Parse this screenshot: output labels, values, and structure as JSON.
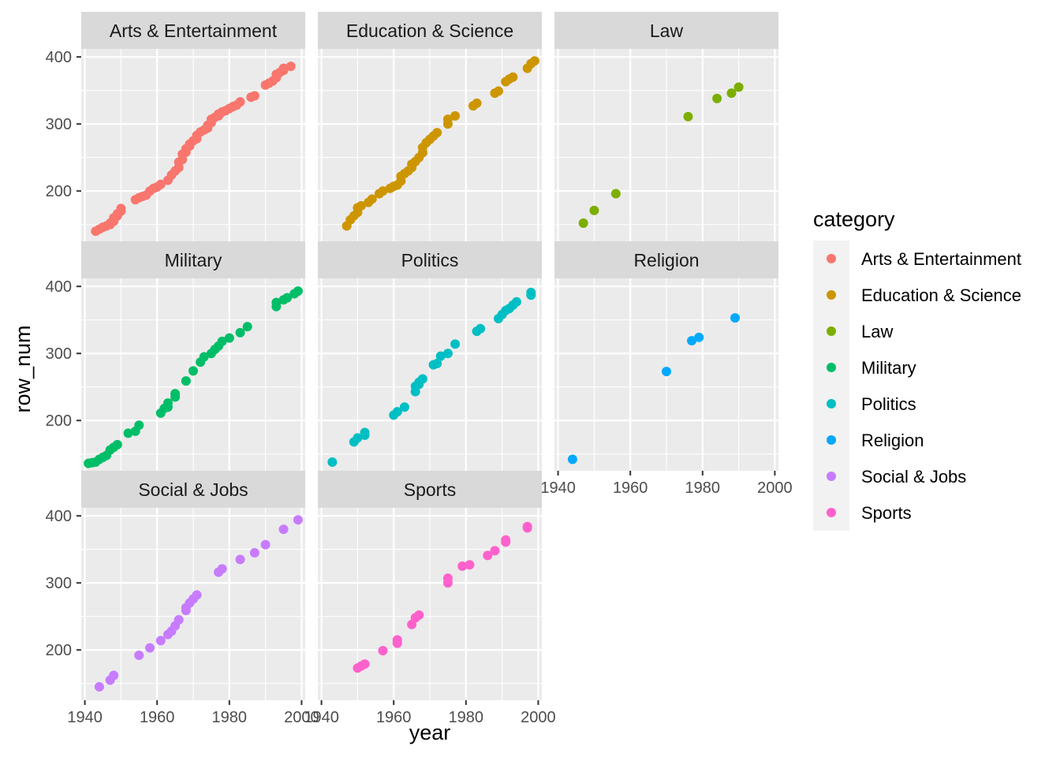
{
  "chart_data": {
    "type": "scatter",
    "facet_by": "category",
    "xlabel": "year",
    "ylabel": "row_num",
    "xlim": [
      1939,
      2001
    ],
    "ylim": [
      125,
      412
    ],
    "x_ticks": [
      1940,
      1960,
      1980,
      2000
    ],
    "x_tick_labels": [
      "1940",
      "1960",
      "1980",
      "2000"
    ],
    "y_ticks": [
      200,
      300,
      400
    ],
    "y_tick_labels": [
      "200",
      "300",
      "400"
    ],
    "grid": true,
    "legend": {
      "title": "category",
      "position": "right",
      "entries": [
        {
          "label": "Arts & Entertainment",
          "color": "#F8766D"
        },
        {
          "label": "Education & Science",
          "color": "#CD9600"
        },
        {
          "label": "Law",
          "color": "#7CAE00"
        },
        {
          "label": "Military",
          "color": "#00BE67"
        },
        {
          "label": "Politics",
          "color": "#00BFC4"
        },
        {
          "label": "Religion",
          "color": "#00A9FF"
        },
        {
          "label": "Social & Jobs",
          "color": "#C77CFF"
        },
        {
          "label": "Sports",
          "color": "#FF61CC"
        }
      ]
    },
    "series": [
      {
        "name": "Arts & Entertainment",
        "x": [
          1943,
          1944,
          1945,
          1946,
          1947,
          1947,
          1948,
          1948,
          1949,
          1949,
          1950,
          1950,
          1954,
          1955,
          1956,
          1957,
          1958,
          1959,
          1960,
          1961,
          1963,
          1964,
          1965,
          1966,
          1966,
          1967,
          1967,
          1968,
          1968,
          1969,
          1969,
          1970,
          1971,
          1971,
          1972,
          1973,
          1974,
          1974,
          1975,
          1975,
          1976,
          1977,
          1977,
          1978,
          1979,
          1980,
          1981,
          1982,
          1983,
          1986,
          1987,
          1990,
          1991,
          1992,
          1993,
          1993,
          1994,
          1995,
          1995,
          1997
        ],
        "y": [
          140,
          143,
          146,
          148,
          150,
          152,
          155,
          160,
          163,
          166,
          170,
          174,
          187,
          190,
          192,
          194,
          200,
          204,
          206,
          210,
          216,
          224,
          230,
          235,
          243,
          247,
          255,
          258,
          263,
          267,
          270,
          275,
          278,
          283,
          288,
          291,
          294,
          298,
          302,
          307,
          310,
          312,
          315,
          318,
          320,
          323,
          326,
          328,
          333,
          340,
          342,
          358,
          361,
          364,
          369,
          374,
          377,
          380,
          383,
          386
        ]
      },
      {
        "name": "Education & Science",
        "x": [
          1947,
          1948,
          1949,
          1950,
          1950,
          1951,
          1953,
          1954,
          1956,
          1957,
          1959,
          1960,
          1961,
          1962,
          1962,
          1963,
          1964,
          1965,
          1965,
          1966,
          1967,
          1968,
          1968,
          1969,
          1970,
          1971,
          1972,
          1975,
          1975,
          1977,
          1982,
          1983,
          1988,
          1989,
          1991,
          1992,
          1993,
          1997,
          1998,
          1999
        ],
        "y": [
          148,
          157,
          163,
          168,
          175,
          178,
          183,
          188,
          196,
          200,
          204,
          207,
          209,
          215,
          222,
          226,
          230,
          235,
          240,
          244,
          250,
          257,
          265,
          272,
          277,
          282,
          287,
          300,
          307,
          312,
          327,
          331,
          346,
          349,
          363,
          367,
          370,
          383,
          390,
          394
        ]
      },
      {
        "name": "Law",
        "x": [
          1947,
          1950,
          1956,
          1976,
          1984,
          1988,
          1990
        ],
        "y": [
          152,
          171,
          196,
          311,
          338,
          346,
          355
        ]
      },
      {
        "name": "Military",
        "x": [
          1941,
          1942,
          1943,
          1944,
          1945,
          1946,
          1947,
          1948,
          1949,
          1952,
          1954,
          1955,
          1961,
          1962,
          1963,
          1963,
          1965,
          1965,
          1968,
          1970,
          1972,
          1973,
          1975,
          1976,
          1977,
          1978,
          1980,
          1983,
          1985,
          1993,
          1993,
          1995,
          1996,
          1998,
          1999
        ],
        "y": [
          136,
          137,
          138,
          142,
          145,
          148,
          156,
          160,
          164,
          181,
          184,
          193,
          211,
          218,
          226,
          220,
          235,
          240,
          259,
          274,
          287,
          295,
          300,
          306,
          311,
          318,
          323,
          331,
          340,
          370,
          376,
          380,
          383,
          389,
          393
        ]
      },
      {
        "name": "Politics",
        "x": [
          1943,
          1949,
          1950,
          1952,
          1952,
          1960,
          1961,
          1963,
          1966,
          1966,
          1967,
          1967,
          1968,
          1971,
          1972,
          1973,
          1975,
          1977,
          1983,
          1984,
          1989,
          1990,
          1991,
          1992,
          1993,
          1994,
          1998,
          1998
        ],
        "y": [
          138,
          168,
          174,
          178,
          182,
          208,
          213,
          220,
          243,
          251,
          254,
          257,
          262,
          283,
          285,
          296,
          300,
          314,
          333,
          337,
          352,
          358,
          364,
          367,
          372,
          377,
          387,
          391
        ]
      },
      {
        "name": "Religion",
        "x": [
          1944,
          1970,
          1977,
          1979,
          1989
        ],
        "y": [
          142,
          273,
          319,
          324,
          353
        ]
      },
      {
        "name": "Social & Jobs",
        "x": [
          1944,
          1947,
          1948,
          1955,
          1958,
          1961,
          1963,
          1964,
          1965,
          1966,
          1968,
          1968,
          1969,
          1970,
          1971,
          1977,
          1978,
          1983,
          1987,
          1990,
          1995,
          1999
        ],
        "y": [
          145,
          155,
          162,
          192,
          203,
          214,
          223,
          228,
          236,
          245,
          259,
          263,
          270,
          276,
          282,
          316,
          321,
          335,
          345,
          357,
          380,
          394
        ]
      },
      {
        "name": "Sports",
        "x": [
          1950,
          1951,
          1952,
          1957,
          1961,
          1961,
          1965,
          1966,
          1967,
          1975,
          1975,
          1979,
          1981,
          1986,
          1988,
          1991,
          1991,
          1997,
          1997
        ],
        "y": [
          173,
          176,
          179,
          199,
          210,
          215,
          238,
          248,
          252,
          300,
          307,
          325,
          327,
          341,
          348,
          361,
          364,
          382,
          384
        ]
      }
    ]
  }
}
